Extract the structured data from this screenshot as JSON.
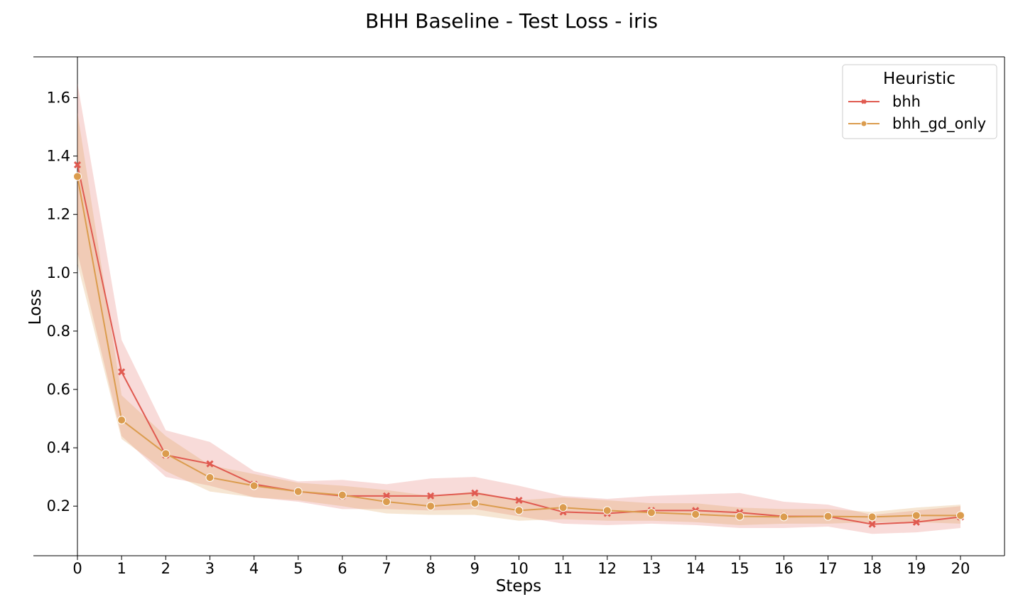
{
  "chart_data": {
    "type": "line",
    "title": "BHH Baseline - Test Loss - iris",
    "xlabel": "Steps",
    "ylabel": "Loss",
    "x": [
      0,
      1,
      2,
      3,
      4,
      5,
      6,
      7,
      8,
      9,
      10,
      11,
      12,
      13,
      14,
      15,
      16,
      17,
      18,
      19,
      20
    ],
    "xticks": [
      "0",
      "1",
      "2",
      "3",
      "4",
      "5",
      "6",
      "7",
      "8",
      "9",
      "10",
      "11",
      "12",
      "13",
      "14",
      "15",
      "16",
      "17",
      "18",
      "19",
      "20"
    ],
    "yticks": [
      0.2,
      0.4,
      0.6,
      0.8,
      1.0,
      1.2,
      1.4,
      1.6
    ],
    "ytick_labels": [
      "0.2",
      "0.4",
      "0.6",
      "0.8",
      "1.0",
      "1.2",
      "1.4",
      "1.6"
    ],
    "xlim": [
      -1,
      21
    ],
    "ylim": [
      0.03,
      1.74
    ],
    "grid": false,
    "legend": {
      "title": "Heuristic",
      "position": "top-right"
    },
    "series": [
      {
        "name": "bhh",
        "color": "#e05a50",
        "marker": "x",
        "values": [
          1.37,
          0.66,
          0.375,
          0.345,
          0.275,
          0.25,
          0.235,
          0.235,
          0.235,
          0.245,
          0.22,
          0.18,
          0.175,
          0.185,
          0.185,
          0.178,
          0.165,
          0.165,
          0.138,
          0.145,
          0.163
        ],
        "ci_lower": [
          1.07,
          0.44,
          0.3,
          0.27,
          0.23,
          0.215,
          0.19,
          0.19,
          0.185,
          0.19,
          0.165,
          0.14,
          0.135,
          0.14,
          0.135,
          0.125,
          0.125,
          0.13,
          0.105,
          0.11,
          0.125
        ],
        "ci_upper": [
          1.65,
          0.77,
          0.46,
          0.42,
          0.32,
          0.285,
          0.29,
          0.275,
          0.295,
          0.3,
          0.27,
          0.235,
          0.225,
          0.235,
          0.24,
          0.245,
          0.215,
          0.205,
          0.17,
          0.185,
          0.2
        ]
      },
      {
        "name": "bhh_gd_only",
        "color": "#db9c4e",
        "marker": "o",
        "values": [
          1.33,
          0.495,
          0.38,
          0.298,
          0.27,
          0.25,
          0.238,
          0.215,
          0.2,
          0.21,
          0.185,
          0.195,
          0.185,
          0.178,
          0.172,
          0.165,
          0.163,
          0.165,
          0.163,
          0.168,
          0.168
        ],
        "ci_lower": [
          1.03,
          0.43,
          0.32,
          0.25,
          0.23,
          0.22,
          0.2,
          0.175,
          0.17,
          0.17,
          0.15,
          0.155,
          0.15,
          0.15,
          0.145,
          0.135,
          0.14,
          0.14,
          0.145,
          0.145,
          0.14
        ],
        "ci_upper": [
          1.55,
          0.58,
          0.44,
          0.34,
          0.31,
          0.28,
          0.27,
          0.255,
          0.235,
          0.25,
          0.22,
          0.23,
          0.22,
          0.21,
          0.21,
          0.195,
          0.19,
          0.19,
          0.18,
          0.195,
          0.205
        ]
      }
    ]
  }
}
